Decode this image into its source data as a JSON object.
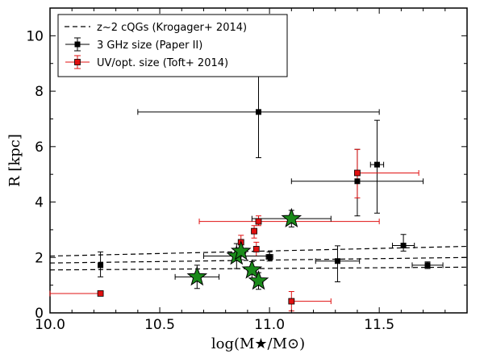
{
  "chart_data": {
    "type": "scatter",
    "xlabel": "log(M★/M⊙)",
    "ylabel": "R [kpc]",
    "xlim": [
      10.0,
      11.9
    ],
    "ylim": [
      0,
      11
    ],
    "x_ticks": [
      "10.0",
      "10.5",
      "11.0",
      "11.5"
    ],
    "y_ticks": [
      "0",
      "2",
      "4",
      "6",
      "8",
      "10"
    ],
    "legend_position": "top-left",
    "legend": [
      {
        "label": "z~2 cQGs (Krogager+ 2014)",
        "style": "dashed-line"
      },
      {
        "label": "3 GHz size (Paper II)",
        "style": "black-square-errorbar"
      },
      {
        "label": "UV/opt. size (Toft+ 2014)",
        "style": "red-square-errorbar"
      }
    ],
    "colors": {
      "black_series": "#000000",
      "red_series": "#e01010",
      "stars": "#1a8a1a",
      "star_edge": "#000000"
    },
    "series": [
      {
        "name": "z~2 cQGs (Krogager+ 2014)",
        "kind": "dashed-lines",
        "lines": [
          {
            "x": [
              10.0,
              11.9
            ],
            "y": [
              2.05,
              2.4
            ]
          },
          {
            "x": [
              10.0,
              11.9
            ],
            "y": [
              1.8,
              2.0
            ]
          },
          {
            "x": [
              10.0,
              11.9
            ],
            "y": [
              1.55,
              1.65
            ]
          }
        ]
      },
      {
        "name": "3 GHz size (Paper II)",
        "kind": "points",
        "points": [
          {
            "x": 10.23,
            "y": 1.72,
            "xerr": 0.01,
            "yerr_low": 0.42,
            "yerr_high": 0.48
          },
          {
            "x": 10.95,
            "y": 7.25,
            "xerr": 0.55,
            "yerr_low": 1.65,
            "yerr_high": 1.8
          },
          {
            "x": 11.4,
            "y": 4.75,
            "xerr": 0.3,
            "yerr_low": 1.25,
            "yerr_high": 1.15
          },
          {
            "x": 11.49,
            "y": 5.35,
            "xerr": 0.03,
            "yerr_low": 1.75,
            "yerr_high": 1.6
          },
          {
            "x": 11.0,
            "y": 2.02,
            "xerr": 0.015,
            "yerr_low": 0.15,
            "yerr_high": 0.18
          },
          {
            "x": 11.31,
            "y": 1.87,
            "xerr": 0.1,
            "yerr_low": 0.75,
            "yerr_high": 0.55
          },
          {
            "x": 11.61,
            "y": 2.43,
            "xerr": 0.05,
            "yerr_low": 0.2,
            "yerr_high": 0.4
          },
          {
            "x": 11.72,
            "y": 1.72,
            "xerr": 0.07,
            "yerr_low": 0.12,
            "yerr_high": 0.12
          }
        ]
      },
      {
        "name": "UV/opt. size (Toft+ 2014)",
        "kind": "points",
        "points": [
          {
            "x": 10.23,
            "y": 0.7,
            "xerr_low": 0.23,
            "xerr_high": 0.0,
            "yerr_low": 0.0,
            "yerr_high": 0.0
          },
          {
            "x": 10.95,
            "y": 3.3,
            "xerr_low": 0.27,
            "xerr_high": 0.55,
            "yerr_low": 0.15,
            "yerr_high": 0.2
          },
          {
            "x": 10.93,
            "y": 2.95,
            "xerr_low": 0.01,
            "xerr_high": 0.01,
            "yerr_low": 0.25,
            "yerr_high": 0.2
          },
          {
            "x": 10.87,
            "y": 2.55,
            "xerr_low": 0.005,
            "xerr_high": 0.005,
            "yerr_low": 0.25,
            "yerr_high": 0.25
          },
          {
            "x": 10.94,
            "y": 2.3,
            "xerr_low": 0.005,
            "xerr_high": 0.005,
            "yerr_low": 0.25,
            "yerr_high": 0.25
          },
          {
            "x": 11.4,
            "y": 5.05,
            "xerr_low": 0.0,
            "xerr_high": 0.28,
            "yerr_low": 0.9,
            "yerr_high": 0.85
          },
          {
            "x": 11.1,
            "y": 0.42,
            "xerr_low": 0.0,
            "xerr_high": 0.18,
            "yerr_low": 0.35,
            "yerr_high": 0.35
          }
        ]
      },
      {
        "name": "",
        "kind": "stars",
        "points": [
          {
            "x": 10.67,
            "y": 1.3,
            "xerr": 0.1,
            "yerr": 0.42
          },
          {
            "x": 10.85,
            "y": 2.05,
            "xerr": 0.15,
            "yerr": 0.45
          },
          {
            "x": 10.87,
            "y": 2.22,
            "xerr": 0.02,
            "yerr": 0.3
          },
          {
            "x": 10.92,
            "y": 1.55,
            "xerr": 0.02,
            "yerr": 0.3
          },
          {
            "x": 10.95,
            "y": 1.15,
            "xerr": 0.02,
            "yerr": 0.3
          },
          {
            "x": 11.1,
            "y": 3.4,
            "xerr": 0.18,
            "yerr": 0.3
          }
        ]
      }
    ]
  }
}
